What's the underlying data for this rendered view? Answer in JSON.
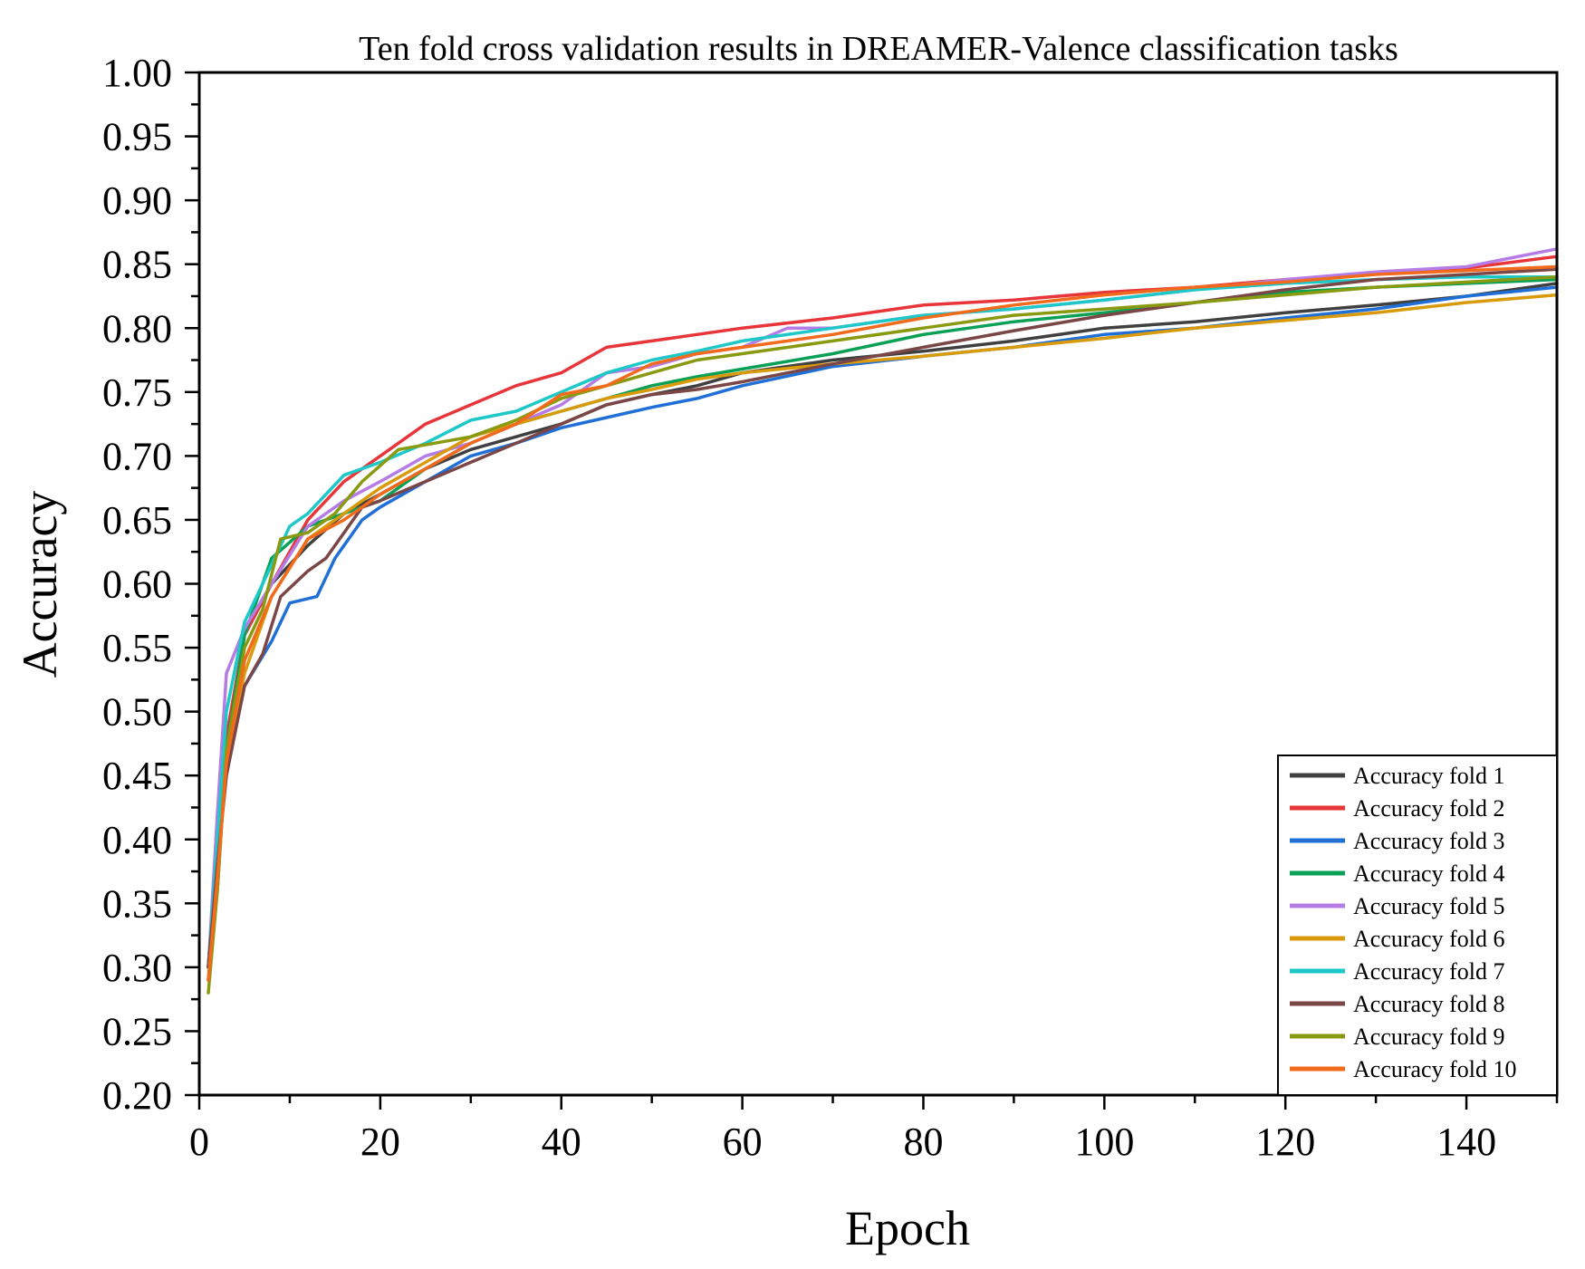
{
  "chart_data": {
    "type": "line",
    "title": "Ten fold cross validation results in DREAMER-Valence classification tasks",
    "xlabel": "Epoch",
    "ylabel": "Accuracy",
    "xlim": [
      0,
      150
    ],
    "ylim": [
      0.2,
      1.0
    ],
    "xticks": [
      0,
      20,
      40,
      60,
      80,
      100,
      120,
      140
    ],
    "xtick_labels": [
      "0",
      "20",
      "40",
      "60",
      "80",
      "100",
      "120",
      "140"
    ],
    "yticks": [
      0.2,
      0.25,
      0.3,
      0.35,
      0.4,
      0.45,
      0.5,
      0.55,
      0.6,
      0.65,
      0.7,
      0.75,
      0.8,
      0.85,
      0.9,
      0.95,
      1.0
    ],
    "ytick_labels": [
      "0.20",
      "0.25",
      "0.30",
      "0.35",
      "0.40",
      "0.45",
      "0.50",
      "0.55",
      "0.60",
      "0.65",
      "0.70",
      "0.75",
      "0.80",
      "0.85",
      "0.90",
      "0.95",
      "1.00"
    ],
    "legend_position": "bottom-right",
    "grid": false,
    "series": [
      {
        "name": "Accuracy fold 1",
        "color": "#404040",
        "x": [
          1,
          2,
          3,
          5,
          8,
          12,
          16,
          20,
          25,
          30,
          35,
          40,
          45,
          50,
          55,
          60,
          70,
          80,
          90,
          100,
          110,
          120,
          130,
          140,
          150
        ],
        "y": [
          0.3,
          0.4,
          0.48,
          0.56,
          0.6,
          0.63,
          0.655,
          0.67,
          0.69,
          0.705,
          0.715,
          0.725,
          0.74,
          0.748,
          0.755,
          0.765,
          0.775,
          0.782,
          0.79,
          0.8,
          0.805,
          0.812,
          0.818,
          0.825,
          0.835
        ]
      },
      {
        "name": "Accuracy fold 2",
        "color": "#e8353a",
        "x": [
          1,
          2,
          3,
          5,
          8,
          12,
          16,
          20,
          25,
          30,
          35,
          40,
          45,
          50,
          55,
          60,
          70,
          80,
          90,
          100,
          110,
          120,
          130,
          140,
          150
        ],
        "y": [
          0.3,
          0.4,
          0.48,
          0.56,
          0.6,
          0.65,
          0.68,
          0.7,
          0.725,
          0.74,
          0.755,
          0.765,
          0.785,
          0.79,
          0.795,
          0.8,
          0.808,
          0.818,
          0.822,
          0.828,
          0.832,
          0.838,
          0.843,
          0.847,
          0.856
        ]
      },
      {
        "name": "Accuracy fold 3",
        "color": "#1f6fd6",
        "x": [
          1,
          2,
          3,
          5,
          8,
          10,
          13,
          15,
          18,
          20,
          25,
          30,
          35,
          40,
          45,
          50,
          55,
          60,
          70,
          80,
          90,
          100,
          110,
          120,
          130,
          140,
          150
        ],
        "y": [
          0.3,
          0.38,
          0.46,
          0.52,
          0.555,
          0.585,
          0.59,
          0.62,
          0.65,
          0.66,
          0.68,
          0.7,
          0.71,
          0.722,
          0.73,
          0.738,
          0.745,
          0.755,
          0.77,
          0.778,
          0.785,
          0.795,
          0.8,
          0.808,
          0.815,
          0.825,
          0.832
        ]
      },
      {
        "name": "Accuracy fold 4",
        "color": "#0aa055",
        "x": [
          1,
          2,
          3,
          5,
          8,
          12,
          16,
          20,
          25,
          30,
          35,
          40,
          45,
          50,
          55,
          60,
          70,
          80,
          90,
          100,
          110,
          120,
          130,
          140,
          150
        ],
        "y": [
          0.29,
          0.36,
          0.47,
          0.56,
          0.62,
          0.645,
          0.655,
          0.665,
          0.69,
          0.71,
          0.725,
          0.735,
          0.745,
          0.755,
          0.762,
          0.768,
          0.78,
          0.795,
          0.805,
          0.812,
          0.82,
          0.828,
          0.832,
          0.835,
          0.838
        ]
      },
      {
        "name": "Accuracy fold 5",
        "color": "#b57ce6",
        "x": [
          1,
          2,
          3,
          5,
          8,
          12,
          16,
          20,
          25,
          30,
          35,
          40,
          45,
          50,
          55,
          60,
          65,
          70,
          80,
          90,
          100,
          110,
          120,
          130,
          140,
          150
        ],
        "y": [
          0.3,
          0.42,
          0.53,
          0.565,
          0.6,
          0.645,
          0.665,
          0.68,
          0.7,
          0.71,
          0.725,
          0.74,
          0.765,
          0.77,
          0.78,
          0.785,
          0.8,
          0.8,
          0.81,
          0.815,
          0.822,
          0.83,
          0.838,
          0.844,
          0.848,
          0.862
        ]
      },
      {
        "name": "Accuracy fold 6",
        "color": "#d99a0c",
        "x": [
          1,
          2,
          3,
          5,
          8,
          12,
          16,
          20,
          25,
          30,
          35,
          40,
          45,
          50,
          55,
          60,
          70,
          80,
          90,
          100,
          110,
          120,
          130,
          140,
          150
        ],
        "y": [
          0.29,
          0.38,
          0.46,
          0.53,
          0.59,
          0.635,
          0.655,
          0.675,
          0.695,
          0.715,
          0.725,
          0.735,
          0.745,
          0.752,
          0.76,
          0.765,
          0.772,
          0.778,
          0.785,
          0.792,
          0.8,
          0.806,
          0.812,
          0.82,
          0.826
        ]
      },
      {
        "name": "Accuracy fold 7",
        "color": "#1ec8c8",
        "x": [
          1,
          2,
          3,
          5,
          7,
          10,
          12,
          16,
          20,
          25,
          30,
          35,
          40,
          45,
          50,
          55,
          60,
          70,
          80,
          90,
          100,
          110,
          120,
          130,
          140,
          150
        ],
        "y": [
          0.3,
          0.4,
          0.5,
          0.57,
          0.6,
          0.645,
          0.655,
          0.685,
          0.695,
          0.71,
          0.728,
          0.735,
          0.75,
          0.765,
          0.775,
          0.782,
          0.79,
          0.8,
          0.81,
          0.815,
          0.822,
          0.83,
          0.835,
          0.838,
          0.84,
          0.84
        ]
      },
      {
        "name": "Accuracy fold 8",
        "color": "#7b4646",
        "x": [
          1,
          2,
          3,
          5,
          7,
          9,
          12,
          14,
          16,
          18,
          20,
          25,
          30,
          35,
          40,
          45,
          50,
          55,
          60,
          70,
          80,
          90,
          100,
          110,
          120,
          130,
          140,
          150
        ],
        "y": [
          0.3,
          0.38,
          0.45,
          0.52,
          0.545,
          0.59,
          0.61,
          0.62,
          0.64,
          0.66,
          0.665,
          0.68,
          0.695,
          0.71,
          0.725,
          0.74,
          0.748,
          0.752,
          0.758,
          0.772,
          0.785,
          0.798,
          0.81,
          0.82,
          0.83,
          0.838,
          0.842,
          0.846
        ]
      },
      {
        "name": "Accuracy fold 9",
        "color": "#8a9a10",
        "x": [
          1,
          2,
          3,
          5,
          7,
          9,
          12,
          15,
          18,
          22,
          26,
          30,
          35,
          40,
          45,
          50,
          55,
          60,
          70,
          80,
          90,
          100,
          110,
          120,
          130,
          140,
          150
        ],
        "y": [
          0.28,
          0.36,
          0.47,
          0.55,
          0.58,
          0.635,
          0.64,
          0.655,
          0.68,
          0.705,
          0.71,
          0.715,
          0.728,
          0.745,
          0.755,
          0.765,
          0.775,
          0.78,
          0.79,
          0.8,
          0.81,
          0.815,
          0.82,
          0.826,
          0.832,
          0.836,
          0.84
        ]
      },
      {
        "name": "Accuracy fold 10",
        "color": "#f26a1b",
        "x": [
          1,
          2,
          3,
          5,
          8,
          12,
          16,
          20,
          25,
          30,
          35,
          40,
          45,
          50,
          55,
          60,
          70,
          80,
          90,
          100,
          110,
          120,
          130,
          140,
          150
        ],
        "y": [
          0.29,
          0.37,
          0.46,
          0.54,
          0.59,
          0.635,
          0.65,
          0.67,
          0.69,
          0.71,
          0.725,
          0.748,
          0.755,
          0.772,
          0.78,
          0.785,
          0.795,
          0.808,
          0.818,
          0.826,
          0.832,
          0.836,
          0.842,
          0.845,
          0.848
        ]
      }
    ]
  }
}
